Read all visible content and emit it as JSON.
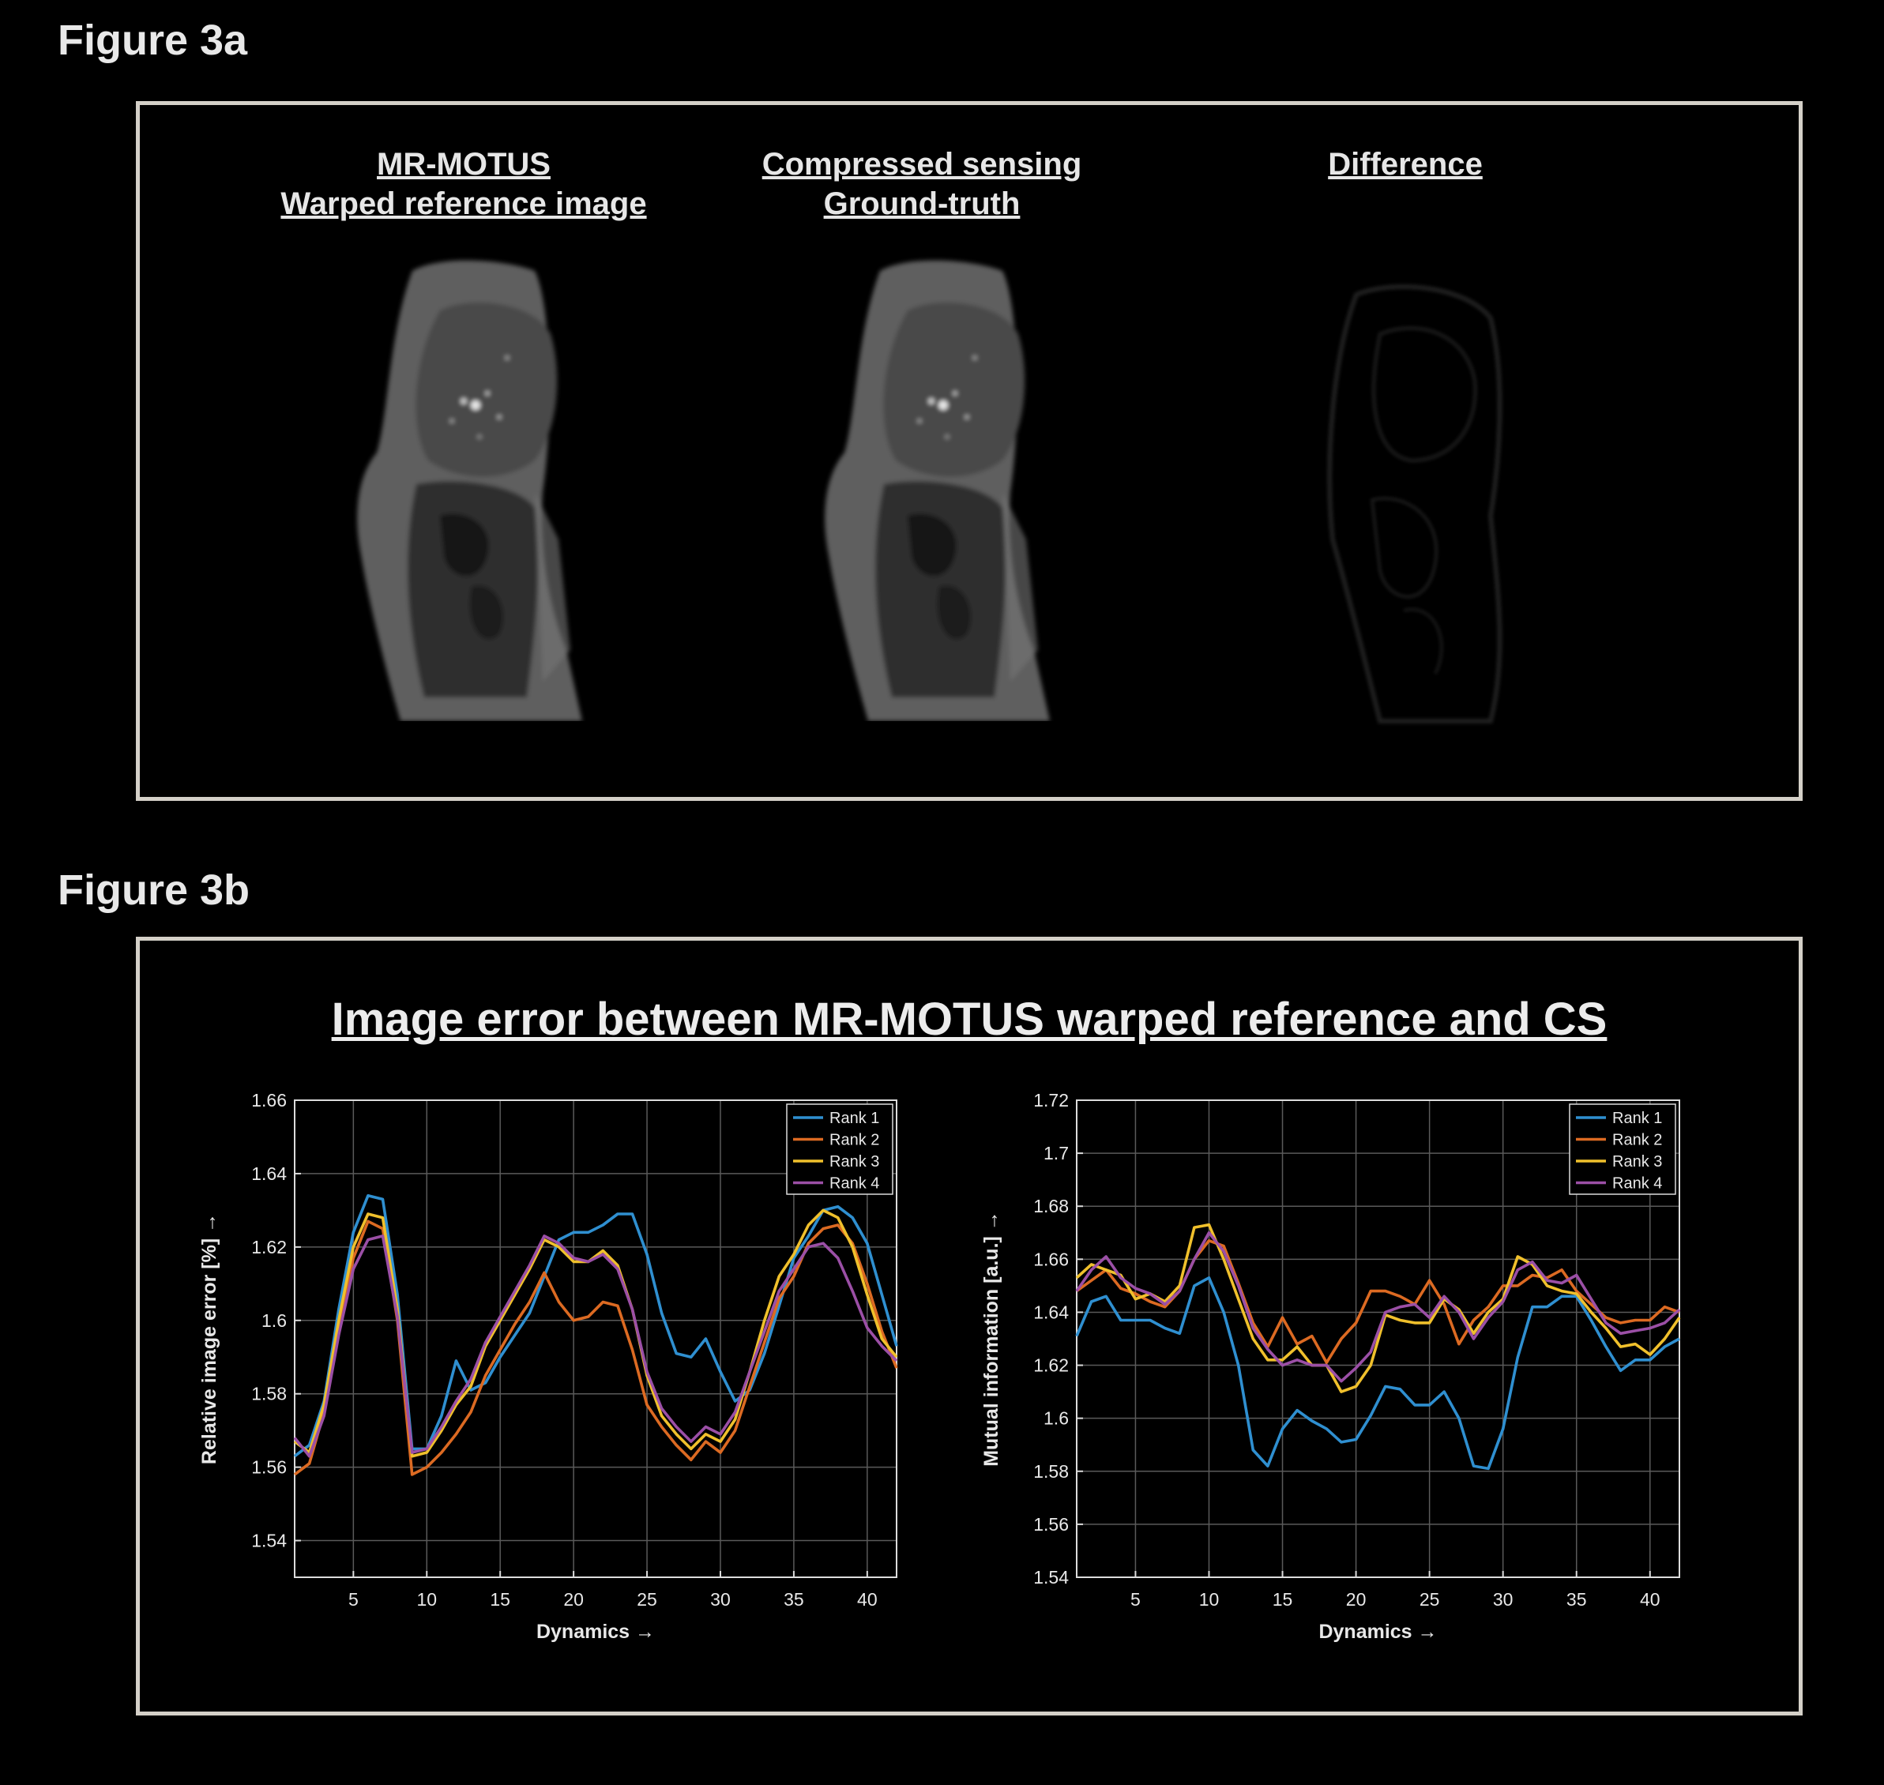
{
  "figure_a": {
    "label": "Figure 3a",
    "panels": [
      {
        "lines": [
          "MR-MOTUS",
          "Warped reference  image"
        ]
      },
      {
        "lines": [
          "Compressed sensing",
          "Ground-truth"
        ]
      },
      {
        "lines": [
          "Difference"
        ]
      }
    ]
  },
  "figure_b": {
    "label": "Figure 3b",
    "title": "Image error between MR-MOTUS warped reference and CS"
  },
  "colors": {
    "rank1": "#2f8fd0",
    "rank2": "#dc6a22",
    "rank3": "#f0c02c",
    "rank4": "#9b4fa6",
    "frame": "#d4d0c8",
    "grid": "#5a5a5a",
    "axes": "#dcdcdc"
  },
  "chart_data": [
    {
      "type": "line",
      "xlabel": "Dynamics  →",
      "ylabel": "Relative image error [%]  →",
      "xlim": [
        1,
        42
      ],
      "ylim": [
        1.53,
        1.66
      ],
      "xticks": [
        5,
        10,
        15,
        20,
        25,
        30,
        35,
        40
      ],
      "yticks": [
        1.54,
        1.56,
        1.58,
        1.6,
        1.62,
        1.64,
        1.66
      ],
      "ytick_labels": [
        "1.54",
        "1.56",
        "1.58",
        "1.6",
        "1.62",
        "1.64",
        "1.66"
      ],
      "grid": true,
      "legend": "top-right",
      "x": [
        1,
        2,
        3,
        4,
        5,
        6,
        7,
        8,
        9,
        10,
        11,
        12,
        13,
        14,
        15,
        16,
        17,
        18,
        19,
        20,
        21,
        22,
        23,
        24,
        25,
        26,
        27,
        28,
        29,
        30,
        31,
        32,
        33,
        34,
        35,
        36,
        37,
        38,
        39,
        40,
        41,
        42
      ],
      "series": [
        {
          "name": "Rank 1",
          "color_key": "rank1",
          "values": [
            1.563,
            1.566,
            1.578,
            1.603,
            1.624,
            1.634,
            1.633,
            1.607,
            1.565,
            1.565,
            1.574,
            1.589,
            1.581,
            1.583,
            1.59,
            1.596,
            1.602,
            1.612,
            1.622,
            1.624,
            1.624,
            1.626,
            1.629,
            1.629,
            1.618,
            1.602,
            1.591,
            1.59,
            1.595,
            1.586,
            1.578,
            1.581,
            1.591,
            1.604,
            1.617,
            1.623,
            1.63,
            1.631,
            1.628,
            1.621,
            1.607,
            1.593
          ]
        },
        {
          "name": "Rank 2",
          "color_key": "rank2",
          "values": [
            1.558,
            1.561,
            1.575,
            1.598,
            1.617,
            1.627,
            1.625,
            1.6,
            1.558,
            1.56,
            1.564,
            1.569,
            1.575,
            1.585,
            1.592,
            1.599,
            1.605,
            1.613,
            1.605,
            1.6,
            1.601,
            1.605,
            1.604,
            1.592,
            1.577,
            1.571,
            1.566,
            1.562,
            1.567,
            1.564,
            1.57,
            1.582,
            1.594,
            1.606,
            1.612,
            1.621,
            1.625,
            1.626,
            1.621,
            1.61,
            1.597,
            1.587
          ]
        },
        {
          "name": "Rank 3",
          "color_key": "rank3",
          "values": [
            1.567,
            1.564,
            1.577,
            1.6,
            1.62,
            1.629,
            1.628,
            1.603,
            1.563,
            1.564,
            1.57,
            1.577,
            1.582,
            1.593,
            1.6,
            1.607,
            1.614,
            1.622,
            1.62,
            1.616,
            1.616,
            1.619,
            1.615,
            1.603,
            1.585,
            1.574,
            1.569,
            1.565,
            1.569,
            1.567,
            1.573,
            1.586,
            1.6,
            1.612,
            1.618,
            1.626,
            1.63,
            1.628,
            1.62,
            1.607,
            1.595,
            1.59
          ]
        },
        {
          "name": "Rank 4",
          "color_key": "rank4",
          "values": [
            1.568,
            1.563,
            1.574,
            1.596,
            1.614,
            1.622,
            1.623,
            1.601,
            1.564,
            1.565,
            1.571,
            1.578,
            1.584,
            1.594,
            1.601,
            1.608,
            1.615,
            1.623,
            1.621,
            1.617,
            1.616,
            1.618,
            1.614,
            1.603,
            1.586,
            1.576,
            1.571,
            1.567,
            1.571,
            1.569,
            1.575,
            1.586,
            1.597,
            1.608,
            1.614,
            1.62,
            1.621,
            1.617,
            1.608,
            1.598,
            1.593,
            1.589
          ]
        }
      ]
    },
    {
      "type": "line",
      "xlabel": "Dynamics  →",
      "ylabel": "Mutual information [a.u.]  →",
      "xlim": [
        1,
        42
      ],
      "ylim": [
        1.54,
        1.72
      ],
      "xticks": [
        5,
        10,
        15,
        20,
        25,
        30,
        35,
        40
      ],
      "yticks": [
        1.54,
        1.56,
        1.58,
        1.6,
        1.62,
        1.64,
        1.66,
        1.68,
        1.7,
        1.72
      ],
      "ytick_labels": [
        "1.54",
        "1.56",
        "1.58",
        "1.6",
        "1.62",
        "1.64",
        "1.66",
        "1.68",
        "1.7",
        "1.72"
      ],
      "grid": true,
      "legend": "top-right",
      "x": [
        1,
        2,
        3,
        4,
        5,
        6,
        7,
        8,
        9,
        10,
        11,
        12,
        13,
        14,
        15,
        16,
        17,
        18,
        19,
        20,
        21,
        22,
        23,
        24,
        25,
        26,
        27,
        28,
        29,
        30,
        31,
        32,
        33,
        34,
        35,
        36,
        37,
        38,
        39,
        40,
        41,
        42
      ],
      "series": [
        {
          "name": "Rank 1",
          "color_key": "rank1",
          "values": [
            1.631,
            1.644,
            1.646,
            1.637,
            1.637,
            1.637,
            1.634,
            1.632,
            1.65,
            1.653,
            1.64,
            1.62,
            1.588,
            1.582,
            1.596,
            1.603,
            1.599,
            1.596,
            1.591,
            1.592,
            1.601,
            1.612,
            1.611,
            1.605,
            1.605,
            1.61,
            1.6,
            1.582,
            1.581,
            1.596,
            1.623,
            1.642,
            1.642,
            1.646,
            1.646,
            1.637,
            1.627,
            1.618,
            1.622,
            1.622,
            1.627,
            1.63
          ]
        },
        {
          "name": "Rank 2",
          "color_key": "rank2",
          "values": [
            1.648,
            1.652,
            1.656,
            1.649,
            1.647,
            1.644,
            1.642,
            1.648,
            1.66,
            1.667,
            1.665,
            1.651,
            1.636,
            1.627,
            1.638,
            1.628,
            1.631,
            1.621,
            1.63,
            1.636,
            1.648,
            1.648,
            1.646,
            1.643,
            1.652,
            1.643,
            1.628,
            1.637,
            1.642,
            1.65,
            1.65,
            1.654,
            1.653,
            1.656,
            1.648,
            1.643,
            1.638,
            1.636,
            1.637,
            1.637,
            1.642,
            1.64
          ]
        },
        {
          "name": "Rank 3",
          "color_key": "rank3",
          "values": [
            1.653,
            1.658,
            1.656,
            1.654,
            1.645,
            1.647,
            1.644,
            1.65,
            1.672,
            1.673,
            1.66,
            1.645,
            1.63,
            1.622,
            1.622,
            1.627,
            1.62,
            1.62,
            1.61,
            1.612,
            1.62,
            1.639,
            1.637,
            1.636,
            1.636,
            1.645,
            1.641,
            1.632,
            1.64,
            1.645,
            1.661,
            1.658,
            1.65,
            1.648,
            1.647,
            1.64,
            1.634,
            1.627,
            1.628,
            1.624,
            1.63,
            1.638
          ]
        },
        {
          "name": "Rank 4",
          "color_key": "rank4",
          "values": [
            1.648,
            1.656,
            1.661,
            1.653,
            1.649,
            1.647,
            1.643,
            1.648,
            1.66,
            1.67,
            1.663,
            1.65,
            1.634,
            1.626,
            1.62,
            1.622,
            1.62,
            1.62,
            1.614,
            1.619,
            1.625,
            1.64,
            1.642,
            1.643,
            1.638,
            1.646,
            1.64,
            1.63,
            1.638,
            1.644,
            1.656,
            1.659,
            1.652,
            1.651,
            1.654,
            1.645,
            1.636,
            1.632,
            1.633,
            1.634,
            1.636,
            1.641
          ]
        }
      ]
    }
  ]
}
